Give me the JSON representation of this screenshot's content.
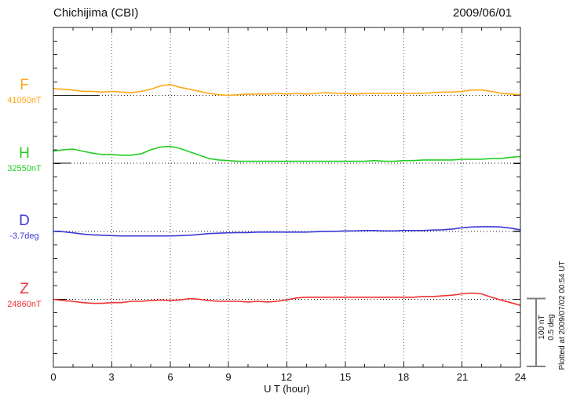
{
  "header": {
    "station_title": "Chichijima (CBI)",
    "date": "2009/06/01"
  },
  "x_axis": {
    "label": "U T (hour)",
    "tick_labels": [
      "0",
      "3",
      "6",
      "9",
      "12",
      "15",
      "18",
      "21",
      "24"
    ]
  },
  "annotations": {
    "scale_bar_line1": "100 nT",
    "scale_bar_line2": "0.5 deg",
    "plotted_at": "Plotted at 2009/07/02 00:54 UT",
    "scale_bar_color": "#808080"
  },
  "chart_data": {
    "type": "line",
    "title": "Chichijima (CBI) magnetogram 2009/06/01",
    "xlabel": "U T (hour)",
    "xlim": [
      0,
      24
    ],
    "x_major_ticks": [
      0,
      3,
      6,
      9,
      12,
      15,
      18,
      21,
      24
    ],
    "x_minor_tick_step_hours": 1,
    "grid": "dotted vertical lines at 3-hour marks; dotted horizontal reference line per series",
    "scale": {
      "nT_per_division": 100,
      "deg_per_division": 0.5
    },
    "x_hours": [
      0,
      0.5,
      1,
      1.5,
      2,
      2.5,
      3,
      3.5,
      4,
      4.5,
      5,
      5.5,
      6,
      6.5,
      7,
      7.5,
      8,
      8.5,
      9,
      9.5,
      10,
      10.5,
      11,
      11.5,
      12,
      12.5,
      13,
      13.5,
      14,
      14.5,
      15,
      15.5,
      16,
      16.5,
      17,
      17.5,
      18,
      18.5,
      19,
      19.5,
      20,
      20.5,
      21,
      21.5,
      22,
      22.5,
      23,
      23.5,
      24
    ],
    "series": [
      {
        "name": "F",
        "unit": "nT",
        "reference": 41050,
        "reference_label": "41050nT",
        "color": "#FFA818",
        "offsets": [
          10,
          9,
          8,
          6,
          6,
          5,
          6,
          5,
          4,
          6,
          9,
          14,
          16,
          12,
          9,
          6,
          3,
          1,
          0,
          1,
          2,
          2,
          2,
          3,
          2,
          3,
          2,
          3,
          4,
          3,
          3,
          2,
          3,
          3,
          3,
          3,
          3,
          3,
          3,
          4,
          5,
          5,
          6,
          8,
          8,
          6,
          3,
          2,
          1
        ]
      },
      {
        "name": "H",
        "unit": "nT",
        "reference": 32550,
        "reference_label": "32550nT",
        "color": "#22CC22",
        "offsets": [
          18,
          20,
          21,
          18,
          15,
          13,
          13,
          12,
          12,
          14,
          20,
          24,
          25,
          22,
          17,
          12,
          7,
          5,
          4,
          3,
          3,
          3,
          3,
          3,
          3,
          3,
          3,
          3,
          3,
          3,
          3,
          3,
          3,
          4,
          3,
          3,
          4,
          4,
          5,
          5,
          5,
          5,
          6,
          6,
          6,
          7,
          7,
          9,
          10
        ]
      },
      {
        "name": "D",
        "unit": "deg",
        "reference": -3.7,
        "reference_label": "-3.7deg",
        "color": "#3A3AD6",
        "offsets": [
          0,
          -0.003,
          -0.011,
          -0.02,
          -0.026,
          -0.029,
          -0.032,
          -0.034,
          -0.034,
          -0.034,
          -0.034,
          -0.034,
          -0.034,
          -0.032,
          -0.029,
          -0.023,
          -0.017,
          -0.014,
          -0.011,
          -0.009,
          -0.009,
          -0.006,
          -0.006,
          -0.006,
          -0.006,
          -0.006,
          -0.006,
          -0.003,
          0,
          0,
          0.003,
          0.003,
          0.006,
          0.006,
          0.003,
          0.003,
          0.006,
          0.006,
          0.006,
          0.009,
          0.011,
          0.017,
          0.026,
          0.032,
          0.034,
          0.034,
          0.032,
          0.023,
          0.011
        ]
      },
      {
        "name": "Z",
        "unit": "nT",
        "reference": 24860,
        "reference_label": "24860nT",
        "color": "#EE3333",
        "offsets": [
          0,
          -2,
          -3,
          -5,
          -6,
          -6,
          -5,
          -5,
          -3,
          -3,
          -2,
          -1,
          -2,
          -1,
          1,
          0,
          -2,
          -3,
          -3,
          -3,
          -4,
          -3,
          -4,
          -3,
          -1,
          2,
          3,
          3,
          3,
          3,
          3,
          3,
          3,
          3,
          3,
          3,
          3,
          3,
          4,
          4,
          5,
          6,
          8,
          9,
          8,
          3,
          -1,
          -5,
          -9
        ]
      }
    ]
  }
}
